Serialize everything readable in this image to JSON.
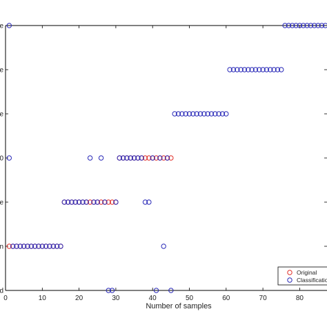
{
  "chart_data": {
    "type": "scatter",
    "xlabel": "Number of samples",
    "ylabel": "",
    "xlim": [
      0,
      87
    ],
    "ylim": [
      0,
      6
    ],
    "x_ticks": [
      0,
      10,
      20,
      30,
      40,
      50,
      60,
      70,
      80
    ],
    "y_tick_fragments": [
      "e",
      "e",
      "e",
      "0",
      "e",
      "n",
      "d"
    ],
    "legend": {
      "placement": "bottom-right",
      "entries": [
        "Original",
        "Classificatio"
      ]
    },
    "series": [
      {
        "name": "Original",
        "color": "#e0302a",
        "points": [
          [
            1,
            1
          ],
          [
            2,
            1
          ],
          [
            3,
            1
          ],
          [
            4,
            1
          ],
          [
            5,
            1
          ],
          [
            6,
            1
          ],
          [
            7,
            1
          ],
          [
            8,
            1
          ],
          [
            9,
            1
          ],
          [
            10,
            1
          ],
          [
            11,
            1
          ],
          [
            12,
            1
          ],
          [
            13,
            1
          ],
          [
            14,
            1
          ],
          [
            15,
            1
          ],
          [
            16,
            2
          ],
          [
            17,
            2
          ],
          [
            18,
            2
          ],
          [
            19,
            2
          ],
          [
            20,
            2
          ],
          [
            21,
            2
          ],
          [
            22,
            2
          ],
          [
            23,
            2
          ],
          [
            24,
            2
          ],
          [
            25,
            2
          ],
          [
            26,
            2
          ],
          [
            27,
            2
          ],
          [
            28,
            2
          ],
          [
            29,
            2
          ],
          [
            30,
            2
          ],
          [
            31,
            3
          ],
          [
            32,
            3
          ],
          [
            33,
            3
          ],
          [
            34,
            3
          ],
          [
            35,
            3
          ],
          [
            36,
            3
          ],
          [
            37,
            3
          ],
          [
            38,
            3
          ],
          [
            39,
            3
          ],
          [
            40,
            3
          ],
          [
            41,
            3
          ],
          [
            42,
            3
          ],
          [
            43,
            3
          ],
          [
            44,
            3
          ],
          [
            45,
            3
          ]
        ]
      },
      {
        "name": "Classificatio",
        "color": "#2a2ab8",
        "points": [
          [
            1,
            6
          ],
          [
            2,
            1
          ],
          [
            3,
            1
          ],
          [
            4,
            1
          ],
          [
            5,
            1
          ],
          [
            6,
            1
          ],
          [
            7,
            1
          ],
          [
            8,
            1
          ],
          [
            9,
            1
          ],
          [
            10,
            1
          ],
          [
            11,
            1
          ],
          [
            12,
            1
          ],
          [
            13,
            1
          ],
          [
            14,
            1
          ],
          [
            15,
            1
          ],
          [
            1,
            3
          ],
          [
            16,
            2
          ],
          [
            17,
            2
          ],
          [
            18,
            2
          ],
          [
            19,
            2
          ],
          [
            20,
            2
          ],
          [
            21,
            2
          ],
          [
            22,
            2
          ],
          [
            23,
            3
          ],
          [
            24,
            2
          ],
          [
            25,
            2
          ],
          [
            26,
            3
          ],
          [
            27,
            2
          ],
          [
            28,
            0
          ],
          [
            29,
            0
          ],
          [
            30,
            2
          ],
          [
            31,
            3
          ],
          [
            32,
            3
          ],
          [
            33,
            3
          ],
          [
            34,
            3
          ],
          [
            35,
            3
          ],
          [
            36,
            3
          ],
          [
            37,
            3
          ],
          [
            38,
            2
          ],
          [
            39,
            2
          ],
          [
            40,
            3
          ],
          [
            41,
            0
          ],
          [
            42,
            3
          ],
          [
            43,
            1
          ],
          [
            44,
            3
          ],
          [
            45,
            0
          ],
          [
            46,
            4
          ],
          [
            47,
            4
          ],
          [
            48,
            4
          ],
          [
            49,
            4
          ],
          [
            50,
            4
          ],
          [
            51,
            4
          ],
          [
            52,
            4
          ],
          [
            53,
            4
          ],
          [
            54,
            4
          ],
          [
            55,
            4
          ],
          [
            56,
            4
          ],
          [
            57,
            4
          ],
          [
            58,
            4
          ],
          [
            59,
            4
          ],
          [
            60,
            4
          ],
          [
            61,
            5
          ],
          [
            62,
            5
          ],
          [
            63,
            5
          ],
          [
            64,
            5
          ],
          [
            65,
            5
          ],
          [
            66,
            5
          ],
          [
            67,
            5
          ],
          [
            68,
            5
          ],
          [
            69,
            5
          ],
          [
            70,
            5
          ],
          [
            71,
            5
          ],
          [
            72,
            5
          ],
          [
            73,
            5
          ],
          [
            74,
            5
          ],
          [
            75,
            5
          ],
          [
            76,
            6
          ],
          [
            77,
            6
          ],
          [
            78,
            6
          ],
          [
            79,
            6
          ],
          [
            80,
            6
          ],
          [
            81,
            6
          ],
          [
            82,
            6
          ],
          [
            83,
            6
          ],
          [
            84,
            6
          ],
          [
            85,
            6
          ],
          [
            86,
            6
          ],
          [
            87,
            6
          ]
        ]
      }
    ]
  }
}
